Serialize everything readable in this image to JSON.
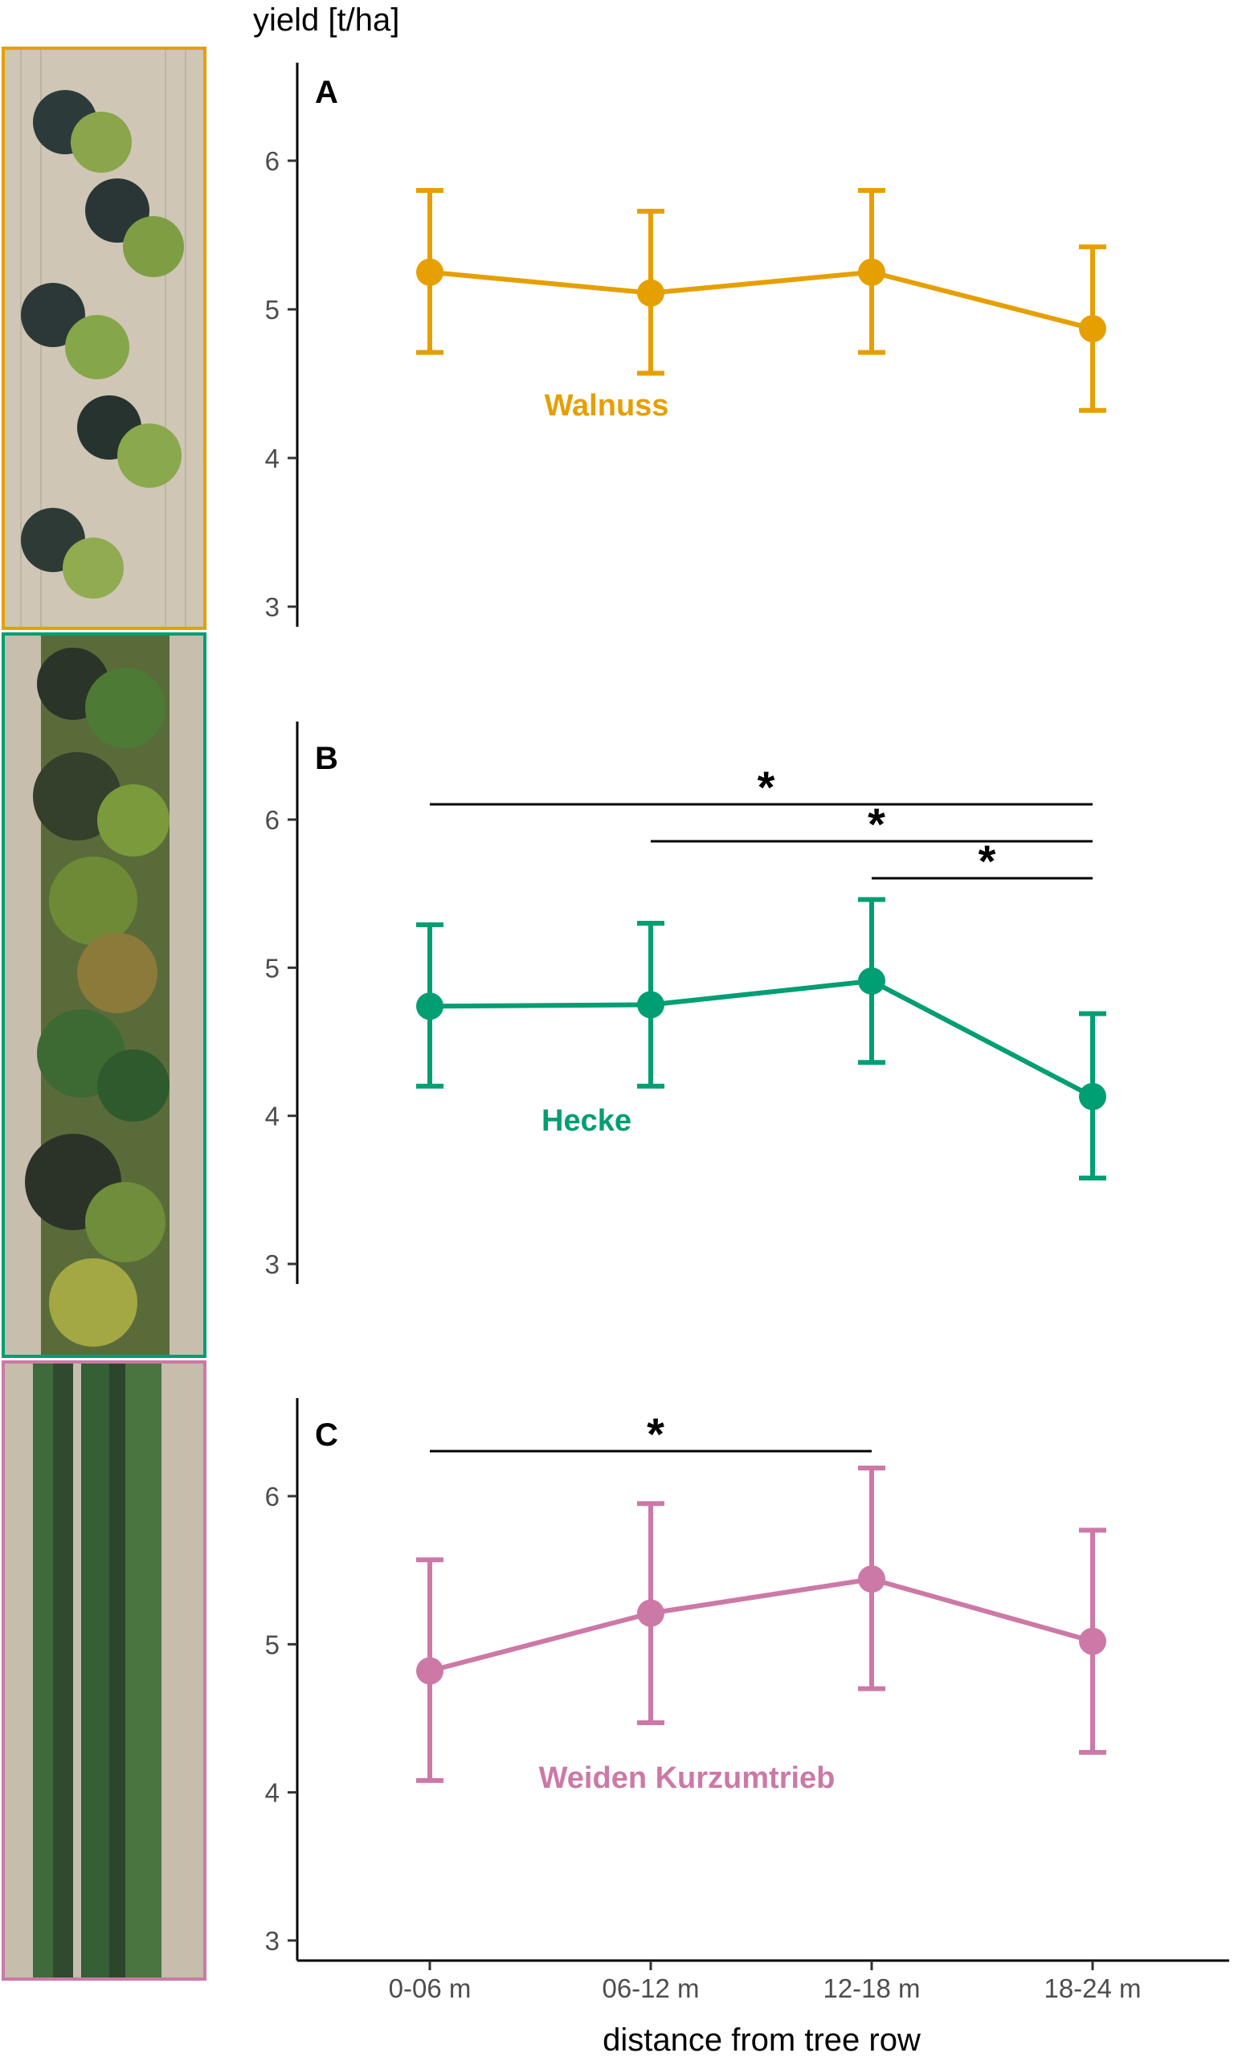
{
  "colors": {
    "walnuss": "#E69F00",
    "hecke": "#009E73",
    "weiden": "#CC79A7",
    "axis": "#000000"
  },
  "photos": [
    {
      "name": "walnut-aerial-photo",
      "border_color": "#E69F00",
      "depicts": "walnut tree row, aerial view"
    },
    {
      "name": "hedge-aerial-photo",
      "border_color": "#009E73",
      "depicts": "hedge row, aerial view"
    },
    {
      "name": "willow-aerial-photo",
      "border_color": "#CC79A7",
      "depicts": "short-rotation willow rows, aerial view"
    }
  ],
  "chart_data": {
    "type": "line",
    "ylabel": "yield [t/ha]",
    "xlabel": "distance from tree row",
    "categories": [
      "0-06 m",
      "06-12 m",
      "12-18 m",
      "18-24 m"
    ],
    "ylim": [
      3,
      6.5
    ],
    "yticks": [
      3,
      4,
      5,
      6
    ],
    "grid": false,
    "legend": "none",
    "panels": [
      {
        "letter": "A",
        "series_label": "Walnuss",
        "color": "#E69F00",
        "values": [
          5.25,
          5.11,
          5.25,
          4.87
        ],
        "error_low": [
          4.71,
          4.57,
          4.71,
          4.32
        ],
        "error_high": [
          5.8,
          5.66,
          5.8,
          5.42
        ],
        "significance": []
      },
      {
        "letter": "B",
        "series_label": "Hecke",
        "color": "#009E73",
        "values": [
          4.74,
          4.75,
          4.91,
          4.13
        ],
        "error_low": [
          4.2,
          4.2,
          4.36,
          3.58
        ],
        "error_high": [
          5.29,
          5.3,
          5.46,
          4.69
        ],
        "significance": [
          {
            "from": 0,
            "to": 3,
            "label": "*"
          },
          {
            "from": 1,
            "to": 3,
            "label": "*"
          },
          {
            "from": 2,
            "to": 3,
            "label": "*"
          }
        ]
      },
      {
        "letter": "C",
        "series_label": "Weiden Kurzumtrieb",
        "color": "#CC79A7",
        "values": [
          4.82,
          5.21,
          5.44,
          5.02
        ],
        "error_low": [
          4.08,
          4.47,
          4.7,
          4.27
        ],
        "error_high": [
          5.57,
          5.95,
          6.19,
          5.77
        ],
        "significance": [
          {
            "from": 0,
            "to": 2,
            "label": "*"
          }
        ]
      }
    ]
  }
}
